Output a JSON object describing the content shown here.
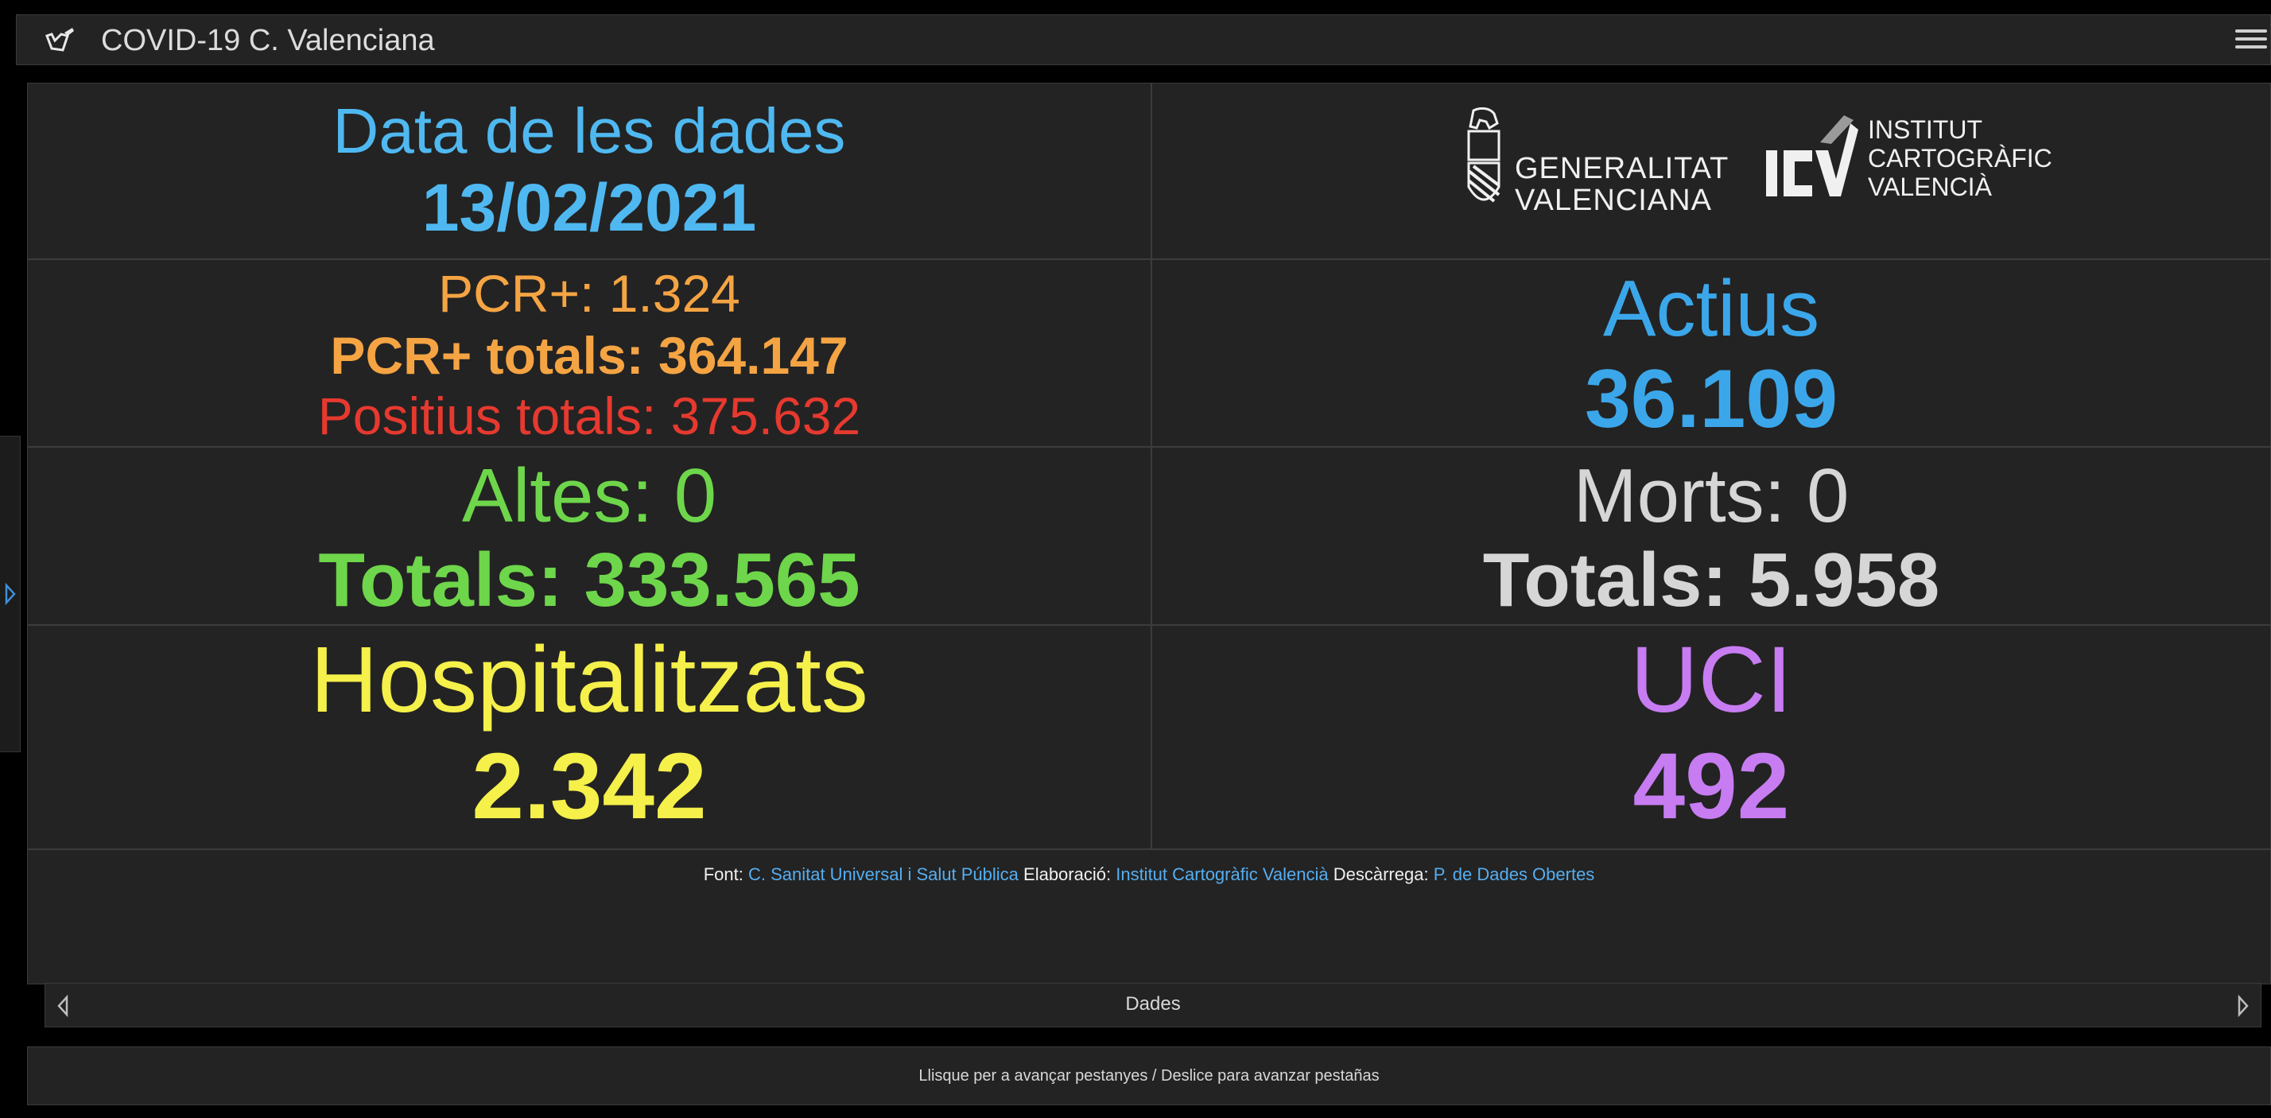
{
  "header": {
    "title": "COVID-19 C. Valenciana",
    "app_icon": "app-logo-icon",
    "menu_icon": "hamburger-menu-icon"
  },
  "colors": {
    "date": "#4fb8f0",
    "pcr": "#f5a443",
    "positius": "#e6392f",
    "actius": "#3ba7ea",
    "altes": "#6ed64a",
    "morts": "#d6d6d6",
    "hospital": "#f5f04a",
    "uci": "#c77cf2"
  },
  "date_cell": {
    "title": "Data de les dades",
    "value": "13/02/2021"
  },
  "logos": {
    "gva_line1": "GENERALITAT",
    "gva_line2": "VALENCIANA",
    "icv_line1": "INSTITUT",
    "icv_line2": "CARTOGRÀFIC",
    "icv_line3": "VALENCIÀ"
  },
  "pcr": {
    "daily_label": "PCR+:",
    "daily_value": "1.324",
    "total_label": "PCR+ totals:",
    "total_value": "364.147",
    "positius_label": "Positius totals:",
    "positius_value": "375.632"
  },
  "actius": {
    "title": "Actius",
    "value": "36.109"
  },
  "altes": {
    "daily_label": "Altes:",
    "daily_value": "0",
    "total_label": "Totals:",
    "total_value": "333.565"
  },
  "morts": {
    "daily_label": "Morts:",
    "daily_value": "0",
    "total_label": "Totals:",
    "total_value": "5.958"
  },
  "hospital": {
    "title": "Hospitalitzats",
    "value": "2.342"
  },
  "uci": {
    "title": "UCI",
    "value": "492"
  },
  "footer": {
    "font_label": "Font:",
    "font_link": "C. Sanitat Universal i Salut Pública",
    "elab_label": "Elaboració:",
    "elab_link": "Institut Cartogràfic Valencià",
    "desc_label": "Descàrrega:",
    "desc_link": "P. de Dades Obertes"
  },
  "pager": {
    "label": "Dades"
  },
  "hint": "Llisque per a avançar pestanyes / Deslice para avanzar pestañas"
}
